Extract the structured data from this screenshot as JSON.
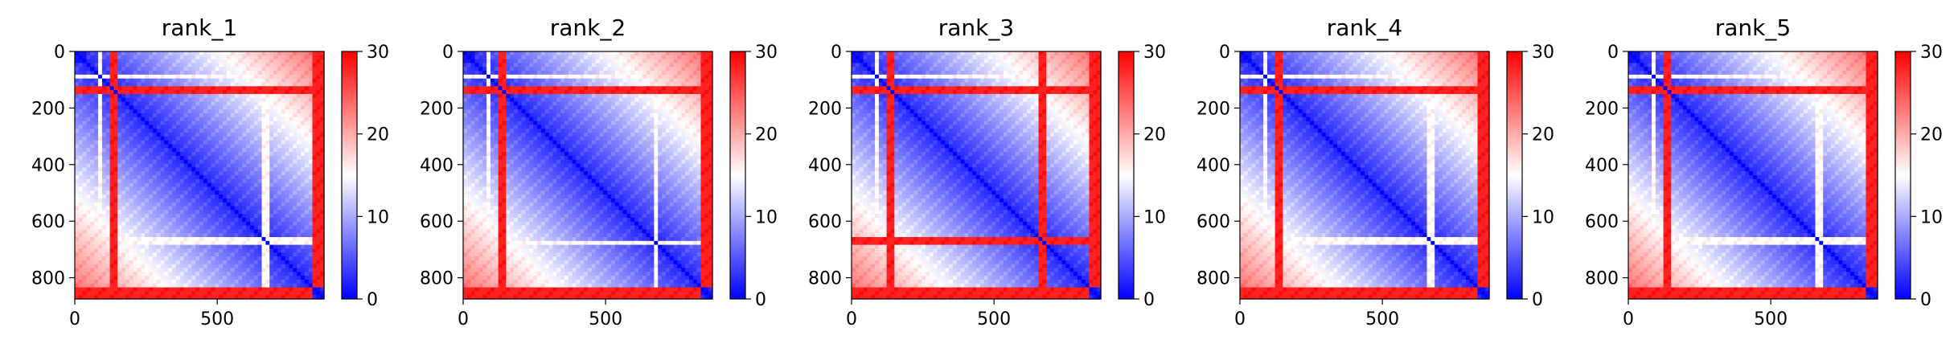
{
  "figure": {
    "panel_count": 5
  },
  "chart_data": [
    {
      "type": "heatmap",
      "title": "rank_1",
      "xlabel": "",
      "ylabel": "",
      "xlim": [
        0,
        875
      ],
      "ylim": [
        875,
        0
      ],
      "x_ticks": [
        "0",
        "500"
      ],
      "x_tick_values": [
        0,
        500
      ],
      "y_ticks": [
        "0",
        "200",
        "400",
        "600",
        "800"
      ],
      "y_tick_values": [
        0,
        200,
        400,
        600,
        800
      ],
      "colorbar": {
        "min": 0,
        "max": 30,
        "ticks": [
          "0",
          "10",
          "20",
          "30"
        ],
        "tick_values": [
          0,
          10,
          20,
          30
        ],
        "colormap": "bwr",
        "colors": [
          "#0000ff",
          "#ffffff",
          "#ff0000"
        ]
      },
      "matrix_size": 875,
      "high_bands": [
        [
          120,
          150
        ],
        [
          830,
          875
        ]
      ],
      "light_bands": [
        [
          80,
          95
        ],
        [
          140,
          155
        ],
        [
          660,
          680
        ]
      ],
      "diagonal_value": 0
    },
    {
      "type": "heatmap",
      "title": "rank_2",
      "xlabel": "",
      "ylabel": "",
      "xlim": [
        0,
        875
      ],
      "ylim": [
        875,
        0
      ],
      "x_ticks": [
        "0",
        "500"
      ],
      "x_tick_values": [
        0,
        500
      ],
      "y_ticks": [
        "0",
        "200",
        "400",
        "600",
        "800"
      ],
      "y_tick_values": [
        0,
        200,
        400,
        600,
        800
      ],
      "colorbar": {
        "min": 0,
        "max": 30,
        "ticks": [
          "0",
          "10",
          "20",
          "30"
        ],
        "tick_values": [
          0,
          10,
          20,
          30
        ],
        "colormap": "bwr",
        "colors": [
          "#0000ff",
          "#ffffff",
          "#ff0000"
        ]
      },
      "matrix_size": 875,
      "high_bands": [
        [
          120,
          150
        ],
        [
          830,
          875
        ]
      ],
      "light_bands": [
        [
          80,
          95
        ],
        [
          140,
          155
        ],
        [
          670,
          690
        ]
      ],
      "diagonal_value": 0
    },
    {
      "type": "heatmap",
      "title": "rank_3",
      "xlabel": "",
      "ylabel": "",
      "xlim": [
        0,
        875
      ],
      "ylim": [
        875,
        0
      ],
      "x_ticks": [
        "0",
        "500"
      ],
      "x_tick_values": [
        0,
        500
      ],
      "y_ticks": [
        "0",
        "200",
        "400",
        "600",
        "800"
      ],
      "y_tick_values": [
        0,
        200,
        400,
        600,
        800
      ],
      "colorbar": {
        "min": 0,
        "max": 30,
        "ticks": [
          "0",
          "10",
          "20",
          "30"
        ],
        "tick_values": [
          0,
          10,
          20,
          30
        ],
        "colormap": "bwr",
        "colors": [
          "#0000ff",
          "#ffffff",
          "#ff0000"
        ]
      },
      "matrix_size": 875,
      "high_bands": [
        [
          120,
          150
        ],
        [
          660,
          690
        ],
        [
          830,
          875
        ]
      ],
      "light_bands": [
        [
          80,
          95
        ],
        [
          140,
          155
        ],
        [
          660,
          690
        ]
      ],
      "diagonal_value": 0
    },
    {
      "type": "heatmap",
      "title": "rank_4",
      "xlabel": "",
      "ylabel": "",
      "xlim": [
        0,
        875
      ],
      "ylim": [
        875,
        0
      ],
      "x_ticks": [
        "0",
        "500"
      ],
      "x_tick_values": [
        0,
        500
      ],
      "y_ticks": [
        "0",
        "200",
        "400",
        "600",
        "800"
      ],
      "y_tick_values": [
        0,
        200,
        400,
        600,
        800
      ],
      "colorbar": {
        "min": 0,
        "max": 30,
        "ticks": [
          "0",
          "10",
          "20",
          "30"
        ],
        "tick_values": [
          0,
          10,
          20,
          30
        ],
        "colormap": "bwr",
        "colors": [
          "#0000ff",
          "#ffffff",
          "#ff0000"
        ]
      },
      "matrix_size": 875,
      "high_bands": [
        [
          120,
          150
        ],
        [
          830,
          875
        ]
      ],
      "light_bands": [
        [
          80,
          95
        ],
        [
          140,
          155
        ],
        [
          660,
          680
        ]
      ],
      "diagonal_value": 0
    },
    {
      "type": "heatmap",
      "title": "rank_5",
      "xlabel": "",
      "ylabel": "",
      "xlim": [
        0,
        875
      ],
      "ylim": [
        875,
        0
      ],
      "x_ticks": [
        "0",
        "500"
      ],
      "x_tick_values": [
        0,
        500
      ],
      "y_ticks": [
        "0",
        "200",
        "400",
        "600",
        "800"
      ],
      "y_tick_values": [
        0,
        200,
        400,
        600,
        800
      ],
      "colorbar": {
        "min": 0,
        "max": 30,
        "ticks": [
          "0",
          "10",
          "20",
          "30"
        ],
        "tick_values": [
          0,
          10,
          20,
          30
        ],
        "colormap": "bwr",
        "colors": [
          "#0000ff",
          "#ffffff",
          "#ff0000"
        ]
      },
      "matrix_size": 875,
      "high_bands": [
        [
          120,
          150
        ],
        [
          830,
          875
        ]
      ],
      "light_bands": [
        [
          80,
          95
        ],
        [
          140,
          155
        ],
        [
          660,
          680
        ]
      ],
      "diagonal_value": 0
    }
  ]
}
